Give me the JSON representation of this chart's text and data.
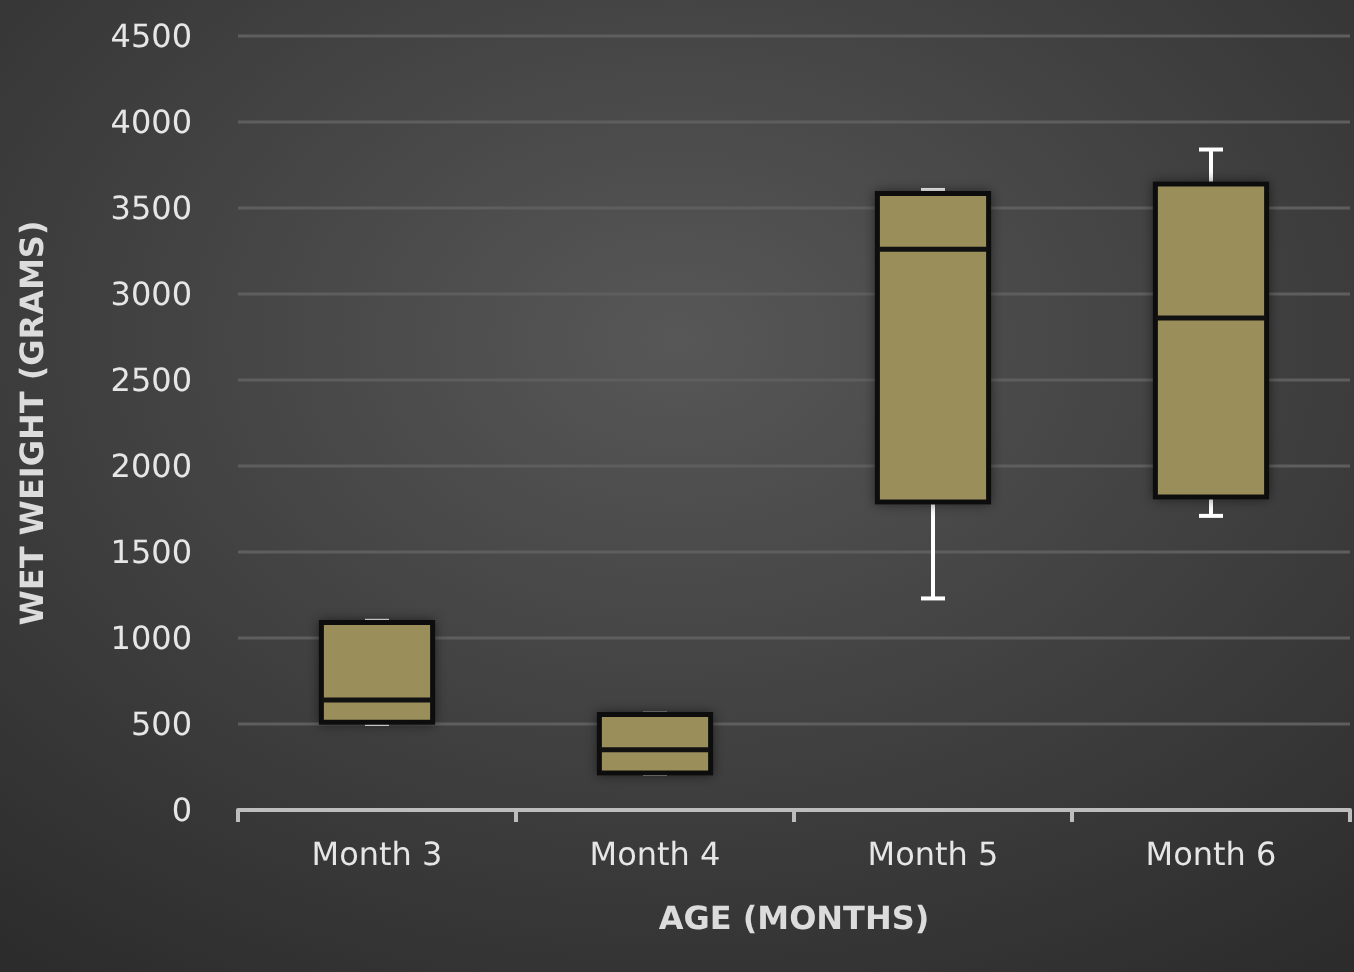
{
  "chart_data": {
    "type": "box",
    "xlabel": "AGE (MONTHS)",
    "ylabel": "WET WEIGHT (GRAMS)",
    "categories": [
      "Month 3",
      "Month 4",
      "Month 5",
      "Month 6"
    ],
    "boxes": [
      {
        "low": 500,
        "q1": 510,
        "median": 640,
        "q3": 1090,
        "high": 1100
      },
      {
        "low": 210,
        "q1": 215,
        "median": 350,
        "q3": 555,
        "high": 560
      },
      {
        "low": 1230,
        "q1": 1790,
        "median": 3260,
        "q3": 3585,
        "high": 3605
      },
      {
        "low": 1710,
        "q1": 1820,
        "median": 2860,
        "q3": 3640,
        "high": 3840
      }
    ],
    "color": "#9a8f5a",
    "ylim": [
      0,
      4500
    ],
    "yticks": [
      0,
      500,
      1000,
      1500,
      2000,
      2500,
      3000,
      3500,
      4000,
      4500
    ],
    "grid": "y"
  }
}
